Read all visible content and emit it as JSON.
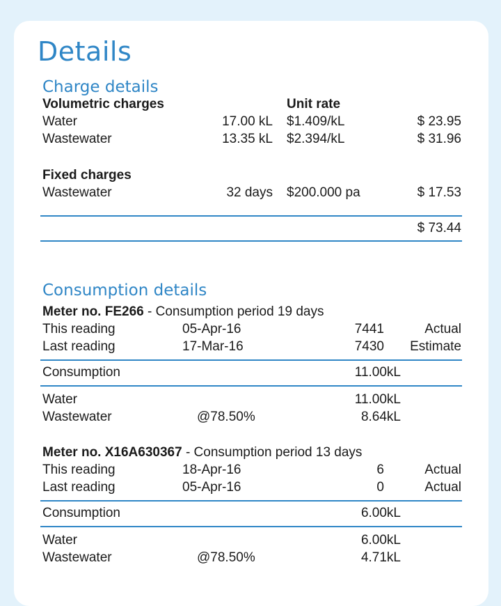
{
  "title": "Details",
  "charges": {
    "heading": "Charge details",
    "volumetric_label": "Volumetric charges",
    "unit_rate_label": "Unit rate",
    "volumetric": [
      {
        "name": "Water",
        "qty": "17.00 kL",
        "rate": "$1.409/kL",
        "amount": "$ 23.95"
      },
      {
        "name": "Wastewater",
        "qty": "13.35 kL",
        "rate": "$2.394/kL",
        "amount": "$ 31.96"
      }
    ],
    "fixed_label": "Fixed charges",
    "fixed": [
      {
        "name": "Wastewater",
        "qty": "32 days",
        "rate": "$200.000 pa",
        "amount": "$ 17.53"
      }
    ],
    "total": "$ 73.44"
  },
  "consumption": {
    "heading": "Consumption details",
    "meters": [
      {
        "meter_label": "Meter no. FE266",
        "period": " - Consumption period 19 days",
        "readings": [
          {
            "label": "This reading",
            "date": "05-Apr-16",
            "value": "7441",
            "type": "Actual"
          },
          {
            "label": "Last reading",
            "date": "17-Mar-16",
            "value": "7430",
            "type": "Estimate"
          }
        ],
        "consumption_label": "Consumption",
        "consumption_value": "11.00kL",
        "water_label": "Water",
        "water_value": "11.00kL",
        "wastewater_label": "Wastewater",
        "wastewater_pct": "@78.50%",
        "wastewater_value": "8.64kL"
      },
      {
        "meter_label": "Meter no. X16A630367",
        "period": " - Consumption period 13 days",
        "readings": [
          {
            "label": "This reading",
            "date": "18-Apr-16",
            "value": "6",
            "type": "Actual"
          },
          {
            "label": "Last reading",
            "date": "05-Apr-16",
            "value": "0",
            "type": "Actual"
          }
        ],
        "consumption_label": "Consumption",
        "consumption_value": "6.00kL",
        "water_label": "Water",
        "water_value": "6.00kL",
        "wastewater_label": "Wastewater",
        "wastewater_pct": "@78.50%",
        "wastewater_value": "4.71kL"
      }
    ]
  }
}
